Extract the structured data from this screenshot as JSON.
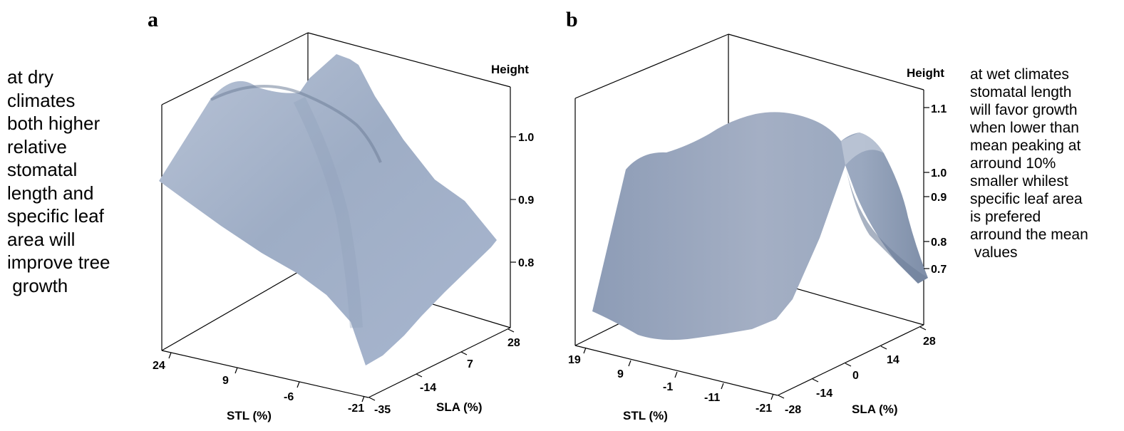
{
  "annotations": {
    "left": [
      "at dry",
      "climates",
      "both higher",
      "relative",
      "stomatal",
      "length and",
      "specific leaf",
      "area will",
      "improve tree",
      " growth"
    ],
    "right": [
      "at wet climates",
      "stomatal length",
      "will favor growth",
      "when lower than",
      "mean peaking at",
      "arround 10%",
      "smaller whilest",
      "specific leaf area",
      "is prefered",
      "arround the mean",
      " values"
    ]
  },
  "surface_color": "#a9b6cc",
  "chart_data": [
    {
      "type": "surface3d",
      "panel": "a",
      "zlabel": "Height",
      "xlabel": "STL (%)",
      "ylabel": "SLA (%)",
      "x_ticks": [
        "24",
        "9",
        "-6",
        "-21"
      ],
      "y_ticks": [
        "-35",
        "-14",
        "7",
        "28"
      ],
      "z_ticks": [
        "1.0",
        "0.9",
        "0.8"
      ],
      "xlim": [
        -21,
        24
      ],
      "ylim": [
        -35,
        28
      ]
    },
    {
      "type": "surface3d",
      "panel": "b",
      "zlabel": "Height",
      "xlabel": "STL (%)",
      "ylabel": "SLA (%)",
      "x_ticks": [
        "19",
        "9",
        "-1",
        "-11",
        "-21"
      ],
      "y_ticks": [
        "-28",
        "-14",
        "0",
        "14",
        "28"
      ],
      "z_ticks": [
        "1.1",
        "1.0",
        "0.9",
        "0.8",
        "0.7"
      ],
      "xlim": [
        -21,
        19
      ],
      "ylim": [
        -28,
        28
      ]
    }
  ]
}
